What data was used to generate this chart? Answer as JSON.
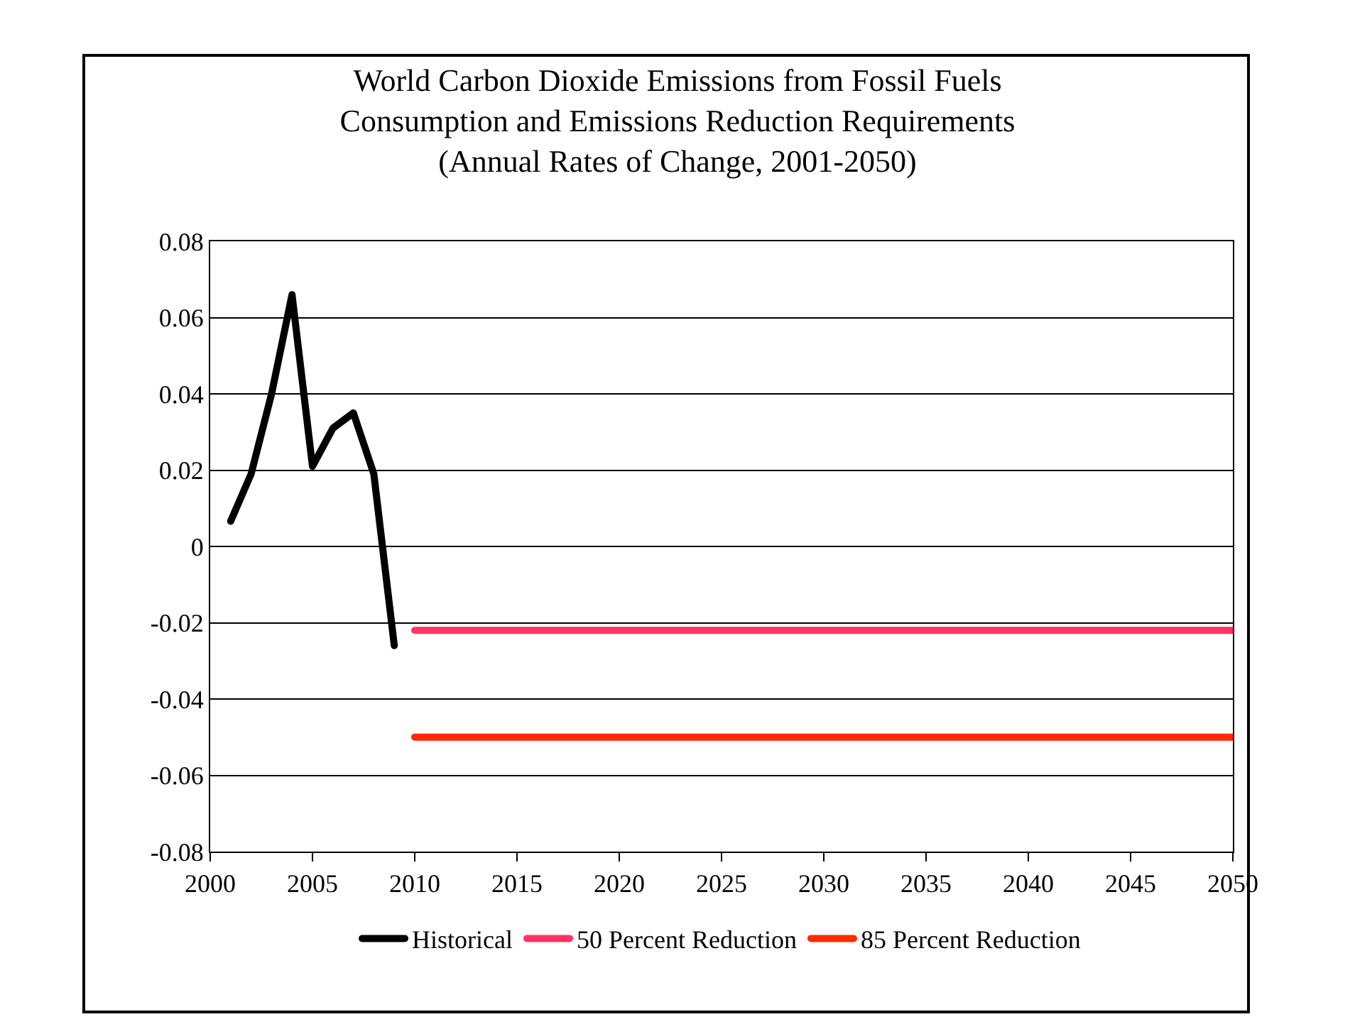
{
  "chart_data": {
    "type": "line",
    "title": "World Carbon Dioxide Emissions from Fossil Fuels\nConsumption and Emissions Reduction Requirements\n(Annual Rates of Change, 2001-2050)",
    "series": [
      {
        "name": "Historical",
        "color": "#000000",
        "x": [
          2001,
          2002,
          2003,
          2004,
          2005,
          2006,
          2007,
          2008,
          2009
        ],
        "values": [
          0.0066,
          0.019,
          0.04,
          0.066,
          0.021,
          0.031,
          0.035,
          0.019,
          -0.026
        ]
      },
      {
        "name": "50 Percent Reduction",
        "color": "#ff3366",
        "x": [
          2010,
          2050
        ],
        "values": [
          -0.022,
          -0.022
        ]
      },
      {
        "name": "85 Percent Reduction",
        "color": "#ff2a00",
        "x": [
          2010,
          2050
        ],
        "values": [
          -0.05,
          -0.05
        ]
      }
    ],
    "xlim": [
      2000,
      2050
    ],
    "xticks": [
      2000,
      2005,
      2010,
      2015,
      2020,
      2025,
      2030,
      2035,
      2040,
      2045,
      2050
    ],
    "ylim": [
      -0.08,
      0.08
    ],
    "yticks": [
      {
        "value": -0.08,
        "label": "-0.08"
      },
      {
        "value": -0.06,
        "label": "-0.06"
      },
      {
        "value": -0.04,
        "label": "-0.04"
      },
      {
        "value": -0.02,
        "label": "-0.02"
      },
      0,
      0.02,
      0.04,
      0.06,
      0.08
    ],
    "grid": "y",
    "legend": "bottom",
    "marker": "none",
    "line_style": "solid"
  }
}
